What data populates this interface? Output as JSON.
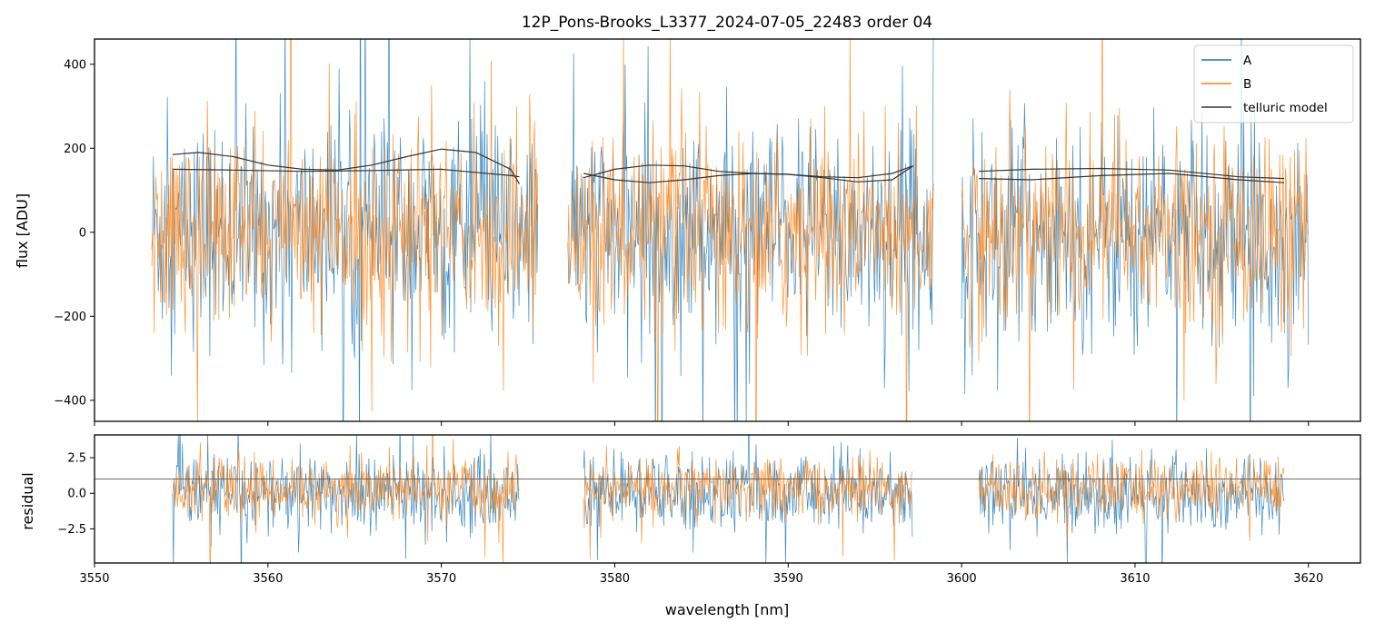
{
  "chart_data": [
    {
      "type": "line",
      "title": "12P_Pons-Brooks_L3377_2024-07-05_22483  order 04",
      "xlabel": "",
      "ylabel": "flux [ADU]",
      "xlim": [
        3550,
        3623
      ],
      "ylim": [
        -450,
        460
      ],
      "yticks": [
        -400,
        -200,
        0,
        200,
        400
      ],
      "ytick_labels": [
        "−400",
        "−200",
        "0",
        "200",
        "400"
      ],
      "legend_position": "top-right",
      "grid": false,
      "segments": [
        [
          3553.3,
          3575.6
        ],
        [
          3577.3,
          3598.4
        ],
        [
          3600.0,
          3620.0
        ]
      ],
      "series": [
        {
          "name": "A",
          "color": "#1f77b4",
          "style": "noisy",
          "noise_center": 0,
          "noise_sd": 130
        },
        {
          "name": "B",
          "color": "#ff7f0e",
          "style": "noisy",
          "noise_center": 0,
          "noise_sd": 120
        },
        {
          "name": "telluric model",
          "color": "#333333",
          "style": "curves",
          "curves": [
            {
              "x": [
                3554.5,
                3556,
                3558,
                3560,
                3562,
                3564,
                3566,
                3568,
                3570,
                3572,
                3574,
                3574.5
              ],
              "y": [
                185,
                190,
                180,
                160,
                150,
                148,
                160,
                180,
                198,
                190,
                150,
                115
              ]
            },
            {
              "x": [
                3554.5,
                3558,
                3562,
                3566,
                3570,
                3574,
                3574.5
              ],
              "y": [
                150,
                148,
                145,
                147,
                150,
                135,
                132
              ]
            },
            {
              "x": [
                3578.2,
                3580,
                3582,
                3584,
                3586,
                3588,
                3590,
                3592,
                3594,
                3596,
                3597.2
              ],
              "y": [
                130,
                150,
                160,
                158,
                145,
                140,
                138,
                130,
                120,
                125,
                158
              ]
            },
            {
              "x": [
                3578.2,
                3580,
                3582,
                3584,
                3586,
                3588,
                3590,
                3592,
                3594,
                3596,
                3597.2
              ],
              "y": [
                140,
                125,
                118,
                125,
                135,
                140,
                138,
                132,
                130,
                140,
                158
              ]
            },
            {
              "x": [
                3601,
                3604,
                3608,
                3612,
                3616,
                3618.6
              ],
              "y": [
                145,
                150,
                152,
                148,
                132,
                128
              ]
            },
            {
              "x": [
                3601,
                3604,
                3608,
                3612,
                3616,
                3618.6
              ],
              "y": [
                128,
                125,
                135,
                140,
                125,
                118
              ]
            }
          ]
        }
      ]
    },
    {
      "type": "line",
      "title": "",
      "xlabel": "wavelength [nm]",
      "ylabel": "residual",
      "xlim": [
        3550,
        3623
      ],
      "ylim": [
        -4.9,
        4.1
      ],
      "xticks": [
        3550,
        3560,
        3570,
        3580,
        3590,
        3600,
        3610,
        3620
      ],
      "xtick_labels": [
        "3550",
        "3560",
        "3570",
        "3580",
        "3590",
        "3600",
        "3610",
        "3620"
      ],
      "yticks": [
        -2.5,
        0.0,
        2.5
      ],
      "ytick_labels": [
        "−2.5",
        "0.0",
        "2.5"
      ],
      "hline": 1.0,
      "grid": false,
      "segments": [
        [
          3554.5,
          3574.5
        ],
        [
          3578.2,
          3597.2
        ],
        [
          3601.0,
          3618.6
        ]
      ],
      "series": [
        {
          "name": "A",
          "color": "#1f77b4",
          "style": "noisy",
          "noise_center": 0,
          "noise_sd": 1.4
        },
        {
          "name": "B",
          "color": "#ff7f0e",
          "style": "noisy",
          "noise_center": 0.3,
          "noise_sd": 1.1
        }
      ]
    }
  ]
}
